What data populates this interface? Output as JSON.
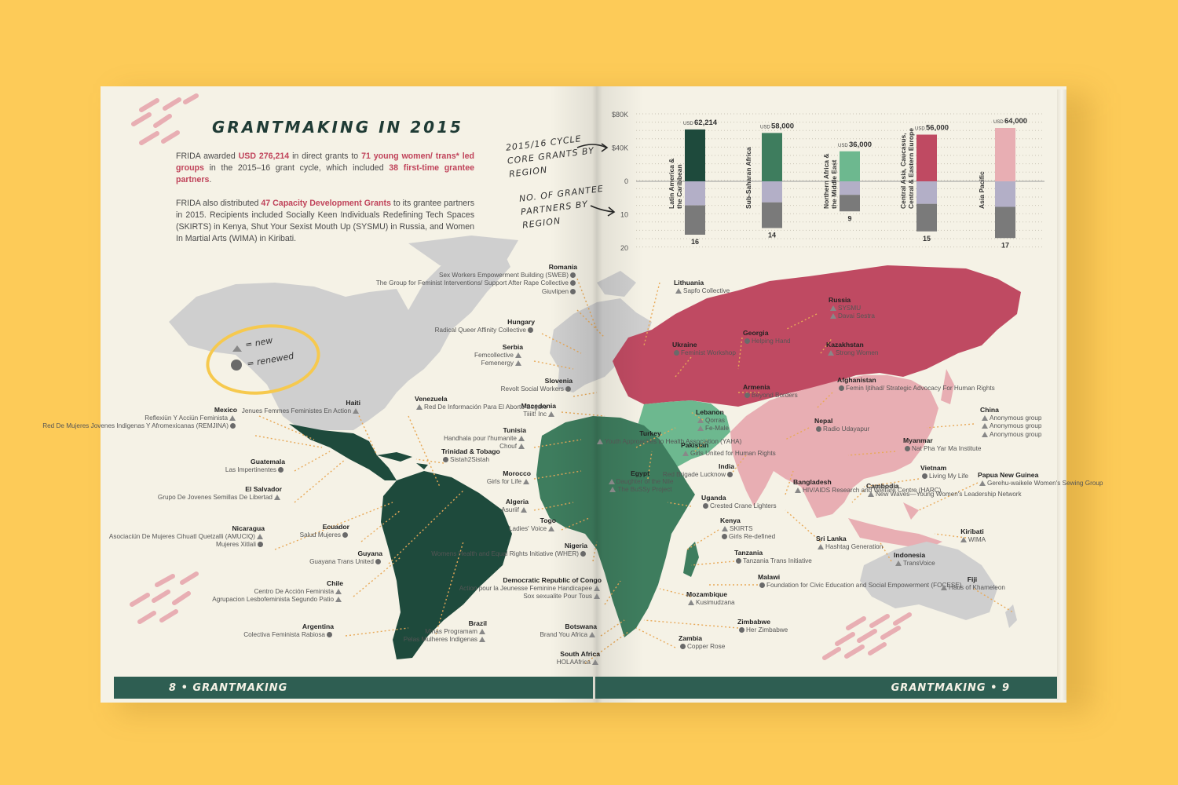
{
  "left_page": {
    "title": "GRANTMAKING IN 2015",
    "paragraph1_html": "FRIDA awarded <b>USD 276,214</b> in direct grants to <b>71 young women/ trans* led groups</b> in the 2015–16 grant cycle, which included <b>38 first-time grantee partners</b>.",
    "paragraph2_html": "FRIDA also distributed <b>47 Capacity Development Grants</b> to its grantee partners in 2015. Recipients included Socially Keen Individuals Redefining Tech Spaces (SKIRTS) in Kenya, Shut Your Sexist Mouth Up (SYSMU) in Russia, and Women In Martial Arts (WIMA) in Kiribati.",
    "footer": "8 • GRANTMAKING"
  },
  "right_page": {
    "footer": "GRANTMAKING • 9"
  },
  "annotations": {
    "core_grants": "2015/16 CYCLE CORE GRANTS BY REGION",
    "partners": "NO. OF GRANTEE PARTNERS BY REGION"
  },
  "legend": {
    "new": "= new",
    "renewed": "= renewed"
  },
  "colors": {
    "latin_america": "#1E4A3C",
    "africa": "#3E7D5E",
    "mena": "#6DB88F",
    "eurasia": "#BF4A62",
    "asia_pacific": "#E8AEB3",
    "other_land": "#CFCFCF",
    "bar_mid": "#B3AFC7",
    "bar_bottom": "#7A7A7A",
    "accent": "#C0435A"
  },
  "chart_data": {
    "type": "bar",
    "categories": [
      "Latin America & the Caribbean",
      "Sub-Saharan Africa",
      "Northern Africa & the Middle East",
      "Central Asia, Caucasus, Central & Eastern Europe",
      "Asia Pacific"
    ],
    "y_ticks_upper": [
      "$80K",
      "$40K",
      "0"
    ],
    "y_ticks_lower": [
      "10",
      "20"
    ],
    "series": [
      {
        "values": [
          62214,
          58000,
          36000,
          56000,
          64000
        ],
        "labels": [
          "62,214",
          "58,000",
          "36,000",
          "56,000",
          "64,000"
        ],
        "prefix": "USD"
      },
      {
        "values": [
          16,
          14,
          9,
          15,
          17
        ]
      }
    ],
    "ylim_upper": [
      0,
      80000
    ],
    "ylim_lower": [
      0,
      20
    ]
  },
  "countries": [
    {
      "id": "romania",
      "name": "Romania",
      "groups": [
        {
          "t": "Sex Workers Empowerment Building (SWEB)",
          "m": "dot"
        },
        {
          "t": "The Group for Feminist Interventions/ Support After Rape Collective",
          "m": "dot"
        },
        {
          "t": "Giuvlipen",
          "m": "dot"
        }
      ]
    },
    {
      "id": "hungary",
      "name": "Hungary",
      "groups": [
        {
          "t": "Radical Queer Affinity Collective",
          "m": "dot"
        }
      ]
    },
    {
      "id": "serbia",
      "name": "Serbia",
      "groups": [
        {
          "t": "Femcollective",
          "m": "tri"
        },
        {
          "t": "Femenergy",
          "m": "tri"
        }
      ]
    },
    {
      "id": "slovenia",
      "name": "Slovenia",
      "groups": [
        {
          "t": "Revolt Social Workers",
          "m": "dot"
        }
      ]
    },
    {
      "id": "macedonia",
      "name": "Macedonia",
      "groups": [
        {
          "t": "Tiiiit! Inc",
          "m": "tri"
        }
      ]
    },
    {
      "id": "tunisia",
      "name": "Tunisia",
      "groups": [
        {
          "t": "Handhala pour l'humanite",
          "m": "tri"
        },
        {
          "t": "Chouf",
          "m": "tri"
        }
      ]
    },
    {
      "id": "morocco",
      "name": "Morocco",
      "groups": [
        {
          "t": "Girls for Life",
          "m": "tri"
        }
      ]
    },
    {
      "id": "algeria",
      "name": "Algeria",
      "groups": [
        {
          "t": "Asuriif",
          "m": "tri"
        }
      ]
    },
    {
      "id": "togo",
      "name": "Togo",
      "groups": [
        {
          "t": "Ladies' Voice",
          "m": "tri"
        }
      ]
    },
    {
      "id": "nigeria",
      "name": "Nigeria",
      "groups": [
        {
          "t": "Womens Health and Equal Rights Initiative (WHER)",
          "m": "dot"
        }
      ]
    },
    {
      "id": "drc",
      "name": "Democratic Republic of Congo",
      "groups": [
        {
          "t": "Action pour la Jeunesse Feminine Handicapee",
          "m": "tri"
        },
        {
          "t": "Sox sexualite Pour Tous",
          "m": "tri"
        }
      ]
    },
    {
      "id": "botswana",
      "name": "Botswana",
      "groups": [
        {
          "t": "Brand You Africa",
          "m": "tri"
        }
      ]
    },
    {
      "id": "south_africa",
      "name": "South Africa",
      "groups": [
        {
          "t": "HOLAAfrica",
          "m": "tri"
        }
      ]
    },
    {
      "id": "mexico",
      "name": "Mexico",
      "groups": [
        {
          "t": "Reflexiün Y Acciün Feminista",
          "m": "tri"
        },
        {
          "t": "Red De Mujeres Jovenes Indigenas Y Afromexicanas (REMJINA)",
          "m": "dot"
        }
      ]
    },
    {
      "id": "haiti",
      "name": "Haiti",
      "groups": [
        {
          "t": "Jenues Femmes Feministes En Action",
          "m": "tri"
        }
      ]
    },
    {
      "id": "venezuela",
      "name": "Venezuela",
      "groups": [
        {
          "t": "Red De Información Para El Aborto Seguro",
          "m": "tri"
        }
      ]
    },
    {
      "id": "trinidad",
      "name": "Trinidad & Tobago",
      "groups": [
        {
          "t": "Sistah2Sistah",
          "m": "dot"
        }
      ]
    },
    {
      "id": "guatemala",
      "name": "Guatemala",
      "groups": [
        {
          "t": "Las Impertinentes",
          "m": "dot"
        }
      ]
    },
    {
      "id": "el_salvador",
      "name": "El Salvador",
      "groups": [
        {
          "t": "Grupo De Jovenes Semillas De Libertad",
          "m": "tri"
        }
      ]
    },
    {
      "id": "nicaragua",
      "name": "Nicaragua",
      "groups": [
        {
          "t": "Asociaciün De Mujeres Cihuatl Quetzalli (AMUCIQ)",
          "m": "tri"
        },
        {
          "t": "Mujeres Xitlali",
          "m": "dot"
        }
      ]
    },
    {
      "id": "ecuador",
      "name": "Ecuador",
      "groups": [
        {
          "t": "Salud Mujeres",
          "m": "dot"
        }
      ]
    },
    {
      "id": "guyana",
      "name": "Guyana",
      "groups": [
        {
          "t": "Guayana Trans United",
          "m": "dot"
        }
      ]
    },
    {
      "id": "chile",
      "name": "Chile",
      "groups": [
        {
          "t": "Centro De Acción Feminista",
          "m": "tri"
        },
        {
          "t": "Agrupacion Lesbofeminista Segundo Patio",
          "m": "tri"
        }
      ]
    },
    {
      "id": "brazil",
      "name": "Brazil",
      "groups": [
        {
          "t": "Minas Programam",
          "m": "tri"
        },
        {
          "t": "Pelas Mulheres Indigenas",
          "m": "tri"
        }
      ]
    },
    {
      "id": "argentina",
      "name": "Argentina",
      "groups": [
        {
          "t": "Colectiva Feminista Rabiosa",
          "m": "dot"
        }
      ]
    },
    {
      "id": "lithuania",
      "name": "Lithuania",
      "groups": [
        {
          "t": "Sapfo Collective",
          "m": "tri"
        }
      ]
    },
    {
      "id": "russia",
      "name": "Russia",
      "groups": [
        {
          "t": "SYSMU",
          "m": "tri"
        },
        {
          "t": "Davai Sestra",
          "m": "tri"
        }
      ]
    },
    {
      "id": "georgia",
      "name": "Georgia",
      "groups": [
        {
          "t": "Helping Hand",
          "m": "dot"
        }
      ]
    },
    {
      "id": "ukraine",
      "name": "Ukraine",
      "groups": [
        {
          "t": "Feminist Workshop",
          "m": "dot"
        }
      ]
    },
    {
      "id": "kazakhstan",
      "name": "Kazakhstan",
      "groups": [
        {
          "t": "Strong Women",
          "m": "tri"
        }
      ]
    },
    {
      "id": "armenia",
      "name": "Armenia",
      "groups": [
        {
          "t": "Beyond Borders",
          "m": "dot"
        }
      ]
    },
    {
      "id": "afghanistan",
      "name": "Afghanistan",
      "groups": [
        {
          "t": "Femin Ijtihad/ Strategic Advocacy For Human Rights",
          "m": "dot"
        }
      ]
    },
    {
      "id": "lebanon",
      "name": "Lebanon",
      "groups": [
        {
          "t": "Qorras",
          "m": "tri"
        },
        {
          "t": "Fe-Male",
          "m": "tri"
        }
      ]
    },
    {
      "id": "turkey",
      "name": "Turkey",
      "groups": [
        {
          "t": "Youth Approaches to Health Association (YAHA)",
          "m": "tri"
        }
      ]
    },
    {
      "id": "pakistan",
      "name": "Pakistan",
      "groups": [
        {
          "t": "Girls United for Human Rights",
          "m": "tri"
        }
      ]
    },
    {
      "id": "egypt",
      "name": "Egypt",
      "groups": [
        {
          "t": "Daughter of the Nile",
          "m": "tri"
        },
        {
          "t": "The BuSSy Project",
          "m": "tri"
        }
      ]
    },
    {
      "id": "nepal",
      "name": "Nepal",
      "groups": [
        {
          "t": "Radio Udayapur",
          "m": "dot"
        }
      ]
    },
    {
      "id": "india",
      "name": "India",
      "groups": [
        {
          "t": "Red Brigade Lucknow",
          "m": "dot"
        }
      ]
    },
    {
      "id": "china",
      "name": "China",
      "groups": [
        {
          "t": "Anonymous group",
          "m": "tri"
        },
        {
          "t": "Anonymous group",
          "m": "tri"
        },
        {
          "t": "Anonymous group",
          "m": "tri"
        }
      ]
    },
    {
      "id": "myanmar",
      "name": "Myanmar",
      "groups": [
        {
          "t": "Nat Pha Yar Ma Institute",
          "m": "dot"
        }
      ]
    },
    {
      "id": "vietnam",
      "name": "Vietnam",
      "groups": [
        {
          "t": "Living My Life",
          "m": "dot"
        }
      ]
    },
    {
      "id": "uganda",
      "name": "Uganda",
      "groups": [
        {
          "t": "Crested Crane Lighters",
          "m": "dot"
        }
      ]
    },
    {
      "id": "bangladesh",
      "name": "Bangladesh",
      "groups": [
        {
          "t": "HIV/AIDS Research and Welfare Centre (HARC)",
          "m": "tri"
        }
      ]
    },
    {
      "id": "cambodia",
      "name": "Cambodia",
      "groups": [
        {
          "t": "New Waves—Young Women's Leadership Network",
          "m": "tri"
        }
      ]
    },
    {
      "id": "png",
      "name": "Papua New Guinea",
      "groups": [
        {
          "t": "Gerehu-waikele Women's Sewing Group",
          "m": "tri"
        }
      ]
    },
    {
      "id": "kenya",
      "name": "Kenya",
      "groups": [
        {
          "t": "SKIRTS",
          "m": "tri"
        },
        {
          "t": "Girls Re-defined",
          "m": "dot"
        }
      ]
    },
    {
      "id": "sri_lanka",
      "name": "Sri Lanka",
      "groups": [
        {
          "t": "Hashtag Generation",
          "m": "tri"
        }
      ]
    },
    {
      "id": "tanzania",
      "name": "Tanzania",
      "groups": [
        {
          "t": "Tanzania Trans Initiative",
          "m": "dot"
        }
      ]
    },
    {
      "id": "kiribati",
      "name": "Kiribati",
      "groups": [
        {
          "t": "WIMA",
          "m": "tri"
        }
      ]
    },
    {
      "id": "indonesia",
      "name": "Indonesia",
      "groups": [
        {
          "t": "TransVoice",
          "m": "tri"
        }
      ]
    },
    {
      "id": "malawi",
      "name": "Malawi",
      "groups": [
        {
          "t": "Foundation for Civic Education and Social Empowerment (FOCESE)",
          "m": "dot"
        }
      ]
    },
    {
      "id": "mozambique",
      "name": "Mozambique",
      "groups": [
        {
          "t": "Kusimudzana",
          "m": "tri"
        }
      ]
    },
    {
      "id": "fiji",
      "name": "Fiji",
      "groups": [
        {
          "t": "Haus of Khameleon",
          "m": "tri"
        }
      ]
    },
    {
      "id": "zimbabwe",
      "name": "Zimbabwe",
      "groups": [
        {
          "t": "Her Zimbabwe",
          "m": "dot"
        }
      ]
    },
    {
      "id": "zambia",
      "name": "Zambia",
      "groups": [
        {
          "t": "Copper Rose",
          "m": "dot"
        }
      ]
    }
  ]
}
